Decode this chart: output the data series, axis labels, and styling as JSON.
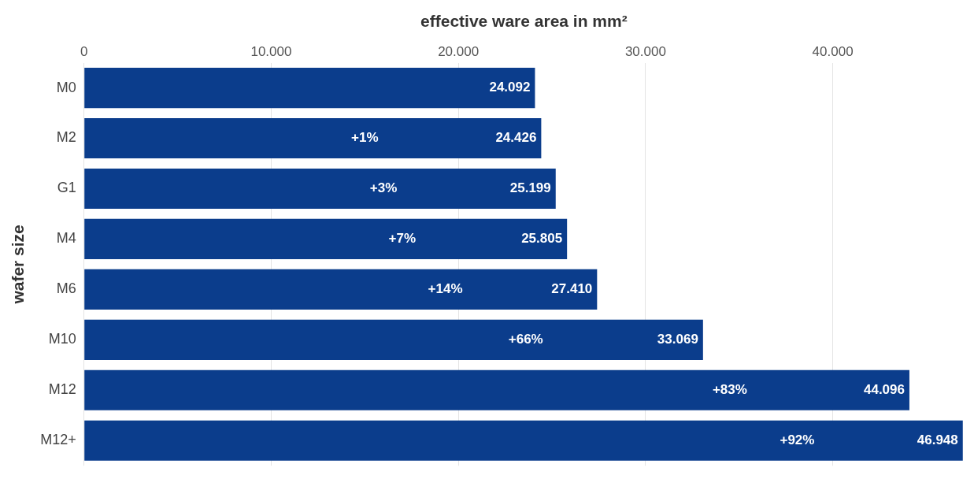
{
  "chart_data": {
    "type": "bar",
    "orientation": "horizontal",
    "xlabel": "effective ware area in mm²",
    "ylabel": "wafer size",
    "categories": [
      "M0",
      "M2",
      "G1",
      "M4",
      "M6",
      "M10",
      "M12",
      "M12+"
    ],
    "values": [
      24092,
      24426,
      25199,
      25805,
      27410,
      33069,
      44096,
      46948
    ],
    "value_labels": [
      "24.092",
      "24.426",
      "25.199",
      "25.805",
      "27.410",
      "33.069",
      "44.096",
      "46.948"
    ],
    "color": "#0b3d8c",
    "xlim": [
      0,
      47000
    ],
    "xticks": [
      0,
      {
        "value": 10000,
        "label": "10.000"
      },
      {
        "value": 20000,
        "label": "20.000"
      },
      {
        "value": 30000,
        "label": "30.000"
      },
      {
        "value": 40000,
        "label": "40.000"
      }
    ],
    "grid": "x",
    "legend": false,
    "annotations": [
      {
        "text": "+1%",
        "x": 15000,
        "y": "M2"
      },
      {
        "text": "+3%",
        "x": 16000,
        "y": "G1"
      },
      {
        "text": "+7%",
        "x": 17000,
        "y": "M4"
      },
      {
        "text": "+14%",
        "x": 19300,
        "y": "M6"
      },
      {
        "text": "+66%",
        "x": 23600,
        "y": "M10"
      },
      {
        "text": "+83%",
        "x": 34500,
        "y": "M12"
      },
      {
        "text": "+92%",
        "x": 38100,
        "y": "M12+"
      }
    ]
  }
}
